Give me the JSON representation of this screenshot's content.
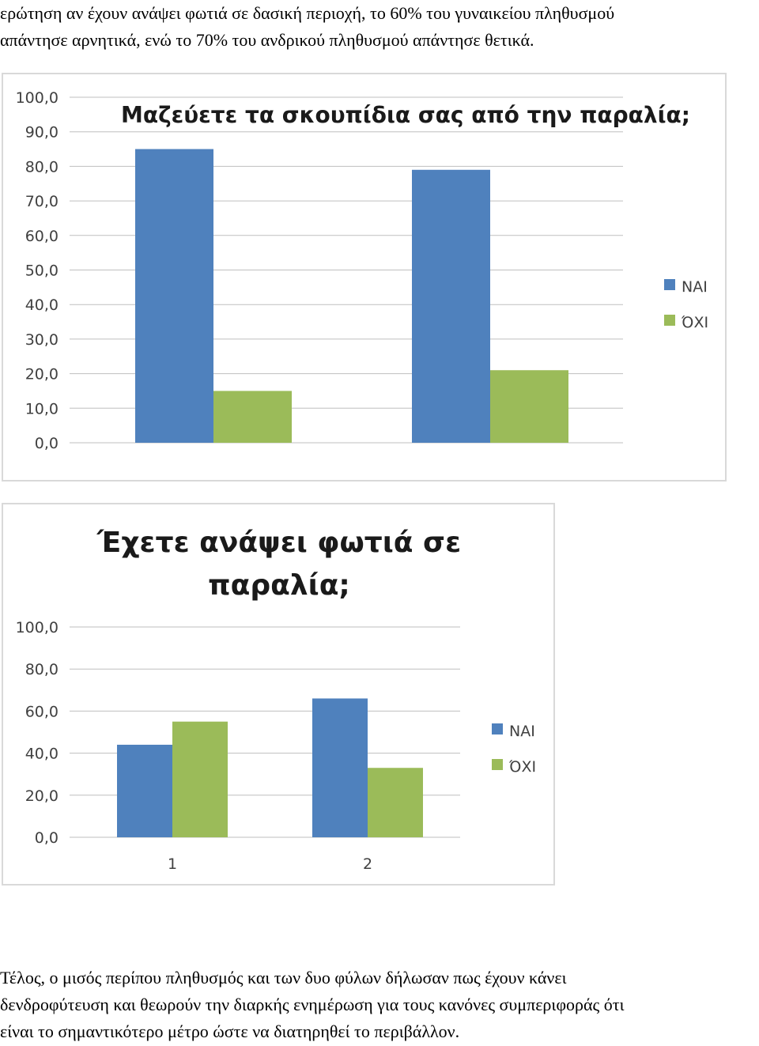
{
  "intro_text": [
    "ερώτηση αν έχουν ανάψει φωτιά σε δασική περιοχή,  το 60% του γυναικείου πληθυσμού",
    "απάντησε αρνητικά, ενώ το 70% του ανδρικού πληθυσμού απάντησε θετικά."
  ],
  "outro_text": [
    "Τέλος, ο μισός περίπου πληθυσμός και των δυο φύλων δήλωσαν πως έχουν κάνει",
    "δενδροφύτευση και θεωρούν την διαρκής ενημέρωση για τους κανόνες συμπεριφοράς ότι",
    "είναι το σημαντικότερο μέτρο ώστε να διατηρηθεί το περιβάλλον."
  ],
  "colors": {
    "yes": "#4f81bd",
    "no": "#9bbb59",
    "grid": "#bfbfbf",
    "border": "#d9d9d9"
  },
  "chart_data": [
    {
      "type": "bar",
      "title": "Μαζεύετε τα σκουπίδια σας από την παραλία;",
      "categories": [
        "",
        ""
      ],
      "series": [
        {
          "name": "ΝΑΙ",
          "values": [
            85.0,
            79.0
          ]
        },
        {
          "name": "ΌΧΙ",
          "values": [
            15.0,
            21.0
          ]
        }
      ],
      "ylim": [
        0,
        100
      ],
      "yticks": [
        "0,0",
        "10,0",
        "20,0",
        "30,0",
        "40,0",
        "50,0",
        "60,0",
        "70,0",
        "80,0",
        "90,0",
        "100,0"
      ],
      "legend": "right",
      "grid": true
    },
    {
      "type": "bar",
      "title": [
        "Έχετε ανάψει φωτιά σε",
        "παραλία;"
      ],
      "categories": [
        "1",
        "2"
      ],
      "series": [
        {
          "name": "ΝΑΙ",
          "values": [
            44.0,
            66.0
          ]
        },
        {
          "name": "ΌΧΙ",
          "values": [
            55.0,
            33.0
          ]
        }
      ],
      "ylim": [
        0,
        100
      ],
      "yticks": [
        "0,0",
        "20,0",
        "40,0",
        "60,0",
        "80,0",
        "100,0"
      ],
      "legend": "right",
      "grid": true
    }
  ]
}
